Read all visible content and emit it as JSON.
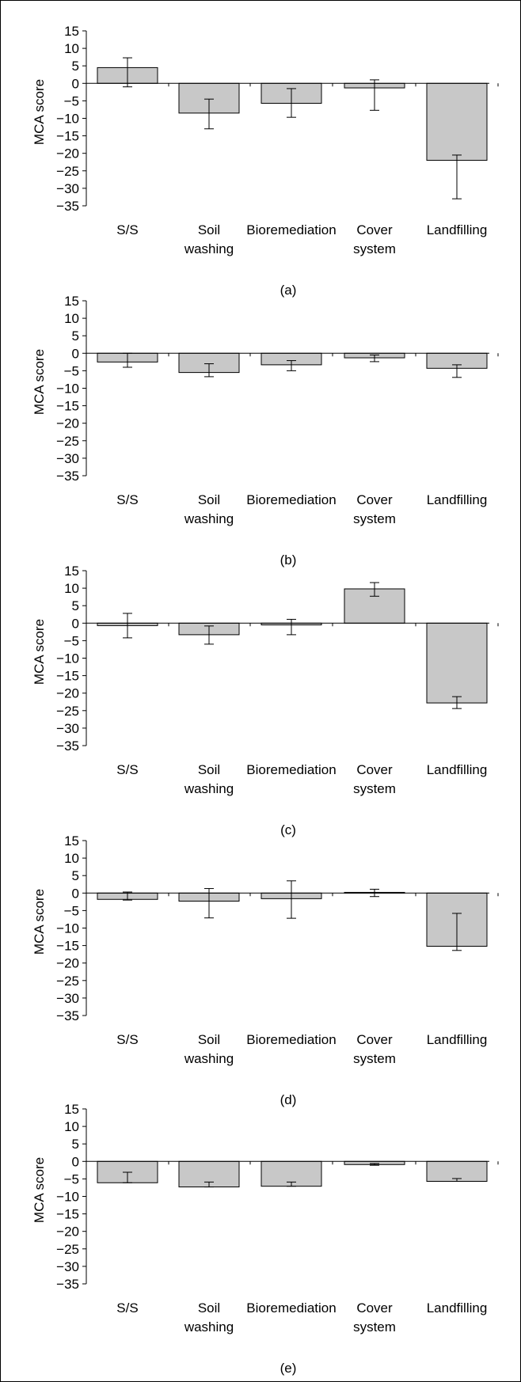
{
  "chart_data": [
    {
      "type": "bar",
      "panel_label": "(a)",
      "ylabel": "MCA score",
      "ylim": [
        -35,
        15
      ],
      "yticks": [
        15,
        10,
        5,
        0,
        -5,
        -10,
        -15,
        -20,
        -25,
        -30,
        -35
      ],
      "categories": [
        [
          "S/S"
        ],
        [
          "Soil",
          "washing"
        ],
        [
          "Bioremediation"
        ],
        [
          "Cover",
          "system"
        ],
        [
          "Landfilling"
        ]
      ],
      "values": [
        4.5,
        -8.5,
        -5.7,
        -1.3,
        -22
      ],
      "error_low": [
        -1.0,
        -13.0,
        -9.7,
        -7.7,
        -33.0
      ],
      "error_high": [
        7.3,
        -4.5,
        -1.5,
        1.0,
        -20.5
      ]
    },
    {
      "type": "bar",
      "panel_label": "(b)",
      "ylabel": "MCA score",
      "ylim": [
        -35,
        15
      ],
      "yticks": [
        15,
        10,
        5,
        0,
        -5,
        -10,
        -15,
        -20,
        -25,
        -30,
        -35
      ],
      "categories": [
        [
          "S/S"
        ],
        [
          "Soil",
          "washing"
        ],
        [
          "Bioremediation"
        ],
        [
          "Cover",
          "system"
        ],
        [
          "Landfilling"
        ]
      ],
      "values": [
        -2.5,
        -5.5,
        -3.3,
        -1.3,
        -4.3
      ],
      "error_low": [
        -4.0,
        -6.7,
        -5.0,
        -2.4,
        -6.9
      ],
      "error_high": [
        0.0,
        -3.0,
        -2.1,
        -0.5,
        -3.3
      ]
    },
    {
      "type": "bar",
      "panel_label": "(c)",
      "ylabel": "MCA score",
      "ylim": [
        -35,
        15
      ],
      "yticks": [
        15,
        10,
        5,
        0,
        -5,
        -10,
        -15,
        -20,
        -25,
        -30,
        -35
      ],
      "categories": [
        [
          "S/S"
        ],
        [
          "Soil",
          "washing"
        ],
        [
          "Bioremediation"
        ],
        [
          "Cover",
          "system"
        ],
        [
          "Landfilling"
        ]
      ],
      "values": [
        -0.7,
        -3.3,
        -0.5,
        9.8,
        -22.8
      ],
      "error_low": [
        -4.2,
        -6.0,
        -3.3,
        7.7,
        -24.4
      ],
      "error_high": [
        2.8,
        -0.8,
        1.1,
        11.6,
        -21.0
      ]
    },
    {
      "type": "bar",
      "panel_label": "(d)",
      "ylabel": "MCA score",
      "ylim": [
        -35,
        15
      ],
      "yticks": [
        15,
        10,
        5,
        0,
        -5,
        -10,
        -15,
        -20,
        -25,
        -30,
        -35
      ],
      "categories": [
        [
          "S/S"
        ],
        [
          "Soil",
          "washing"
        ],
        [
          "Bioremediation"
        ],
        [
          "Cover",
          "system"
        ],
        [
          "Landfilling"
        ]
      ],
      "values": [
        -1.8,
        -2.3,
        -1.6,
        0.2,
        -15.2
      ],
      "error_low": [
        -2.0,
        -7.1,
        -7.2,
        -1.0,
        -16.4
      ],
      "error_high": [
        0.3,
        1.3,
        3.5,
        1.1,
        -5.8
      ]
    },
    {
      "type": "bar",
      "panel_label": "(e)",
      "ylabel": "MCA score",
      "ylim": [
        -35,
        15
      ],
      "yticks": [
        15,
        10,
        5,
        0,
        -5,
        -10,
        -15,
        -20,
        -25,
        -30,
        -35
      ],
      "categories": [
        [
          "S/S"
        ],
        [
          "Soil",
          "washing"
        ],
        [
          "Bioremediation"
        ],
        [
          "Cover",
          "system"
        ],
        [
          "Landfilling"
        ]
      ],
      "values": [
        -6.1,
        -7.3,
        -7.1,
        -0.9,
        -5.7
      ],
      "error_low": [
        -6.1,
        -7.3,
        -7.1,
        -1.1,
        -5.7
      ],
      "error_high": [
        -3.1,
        -5.9,
        -5.9,
        -0.6,
        -4.9
      ]
    }
  ],
  "colors": {
    "bar_fill": "#c8c8c8",
    "bar_stroke": "#000000",
    "axis": "#000000",
    "frame": "#000000"
  }
}
